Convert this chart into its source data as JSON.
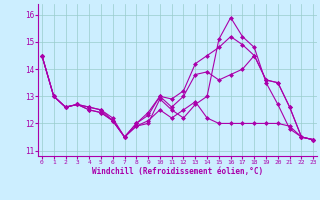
{
  "xlabel": "Windchill (Refroidissement éolien,°C)",
  "bg_color": "#cceeff",
  "line_color": "#aa00aa",
  "grid_color": "#99cccc",
  "x_ticks": [
    0,
    1,
    2,
    3,
    4,
    5,
    6,
    7,
    8,
    9,
    10,
    11,
    12,
    13,
    14,
    15,
    16,
    17,
    18,
    19,
    20,
    21,
    22,
    23
  ],
  "y_ticks": [
    11,
    12,
    13,
    14,
    15,
    16
  ],
  "ylim": [
    10.8,
    16.4
  ],
  "xlim": [
    -0.3,
    23.3
  ],
  "series": [
    [
      14.5,
      13.0,
      12.6,
      12.7,
      12.5,
      12.4,
      12.1,
      11.5,
      11.9,
      12.0,
      12.9,
      12.5,
      12.2,
      12.7,
      13.0,
      15.1,
      15.9,
      15.2,
      14.8,
      13.5,
      12.7,
      11.8,
      11.5,
      11.4
    ],
    [
      14.5,
      13.0,
      12.6,
      12.7,
      12.6,
      12.5,
      12.2,
      11.5,
      12.0,
      12.4,
      13.0,
      12.9,
      13.2,
      14.2,
      14.5,
      14.8,
      15.2,
      14.9,
      14.5,
      13.6,
      13.5,
      12.6,
      11.5,
      11.4
    ],
    [
      14.5,
      13.0,
      12.6,
      12.7,
      12.6,
      12.5,
      12.1,
      11.5,
      12.0,
      12.3,
      13.0,
      12.6,
      13.0,
      13.8,
      13.9,
      13.6,
      13.8,
      14.0,
      14.5,
      13.6,
      13.5,
      12.6,
      11.5,
      11.4
    ],
    [
      14.5,
      13.0,
      12.6,
      12.7,
      12.5,
      12.4,
      12.1,
      11.5,
      11.9,
      12.1,
      12.5,
      12.2,
      12.5,
      12.8,
      12.2,
      12.0,
      12.0,
      12.0,
      12.0,
      12.0,
      12.0,
      11.9,
      11.5,
      11.4
    ]
  ]
}
